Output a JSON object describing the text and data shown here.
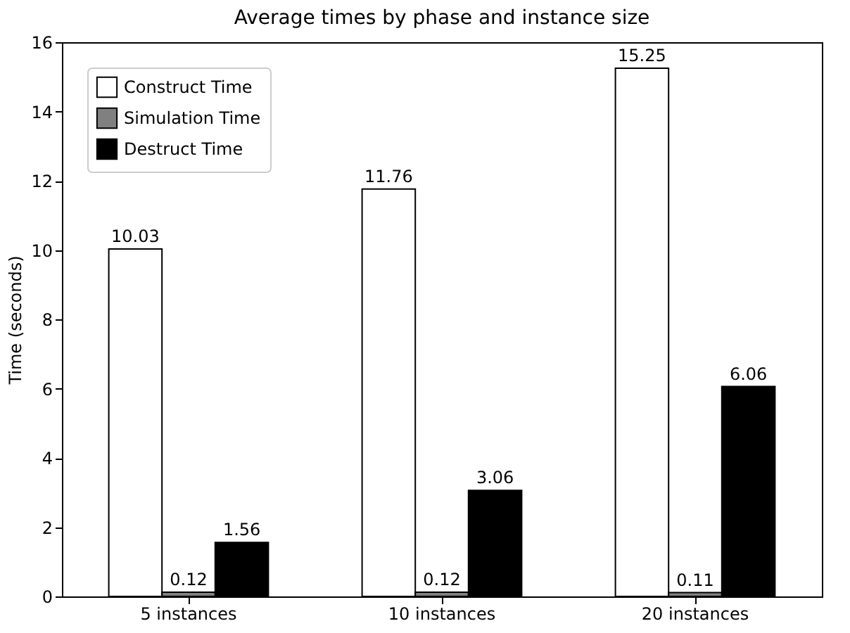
{
  "chart_data": {
    "type": "bar",
    "title": "Average times by phase and instance size",
    "ylabel": "Time (seconds)",
    "categories": [
      "5 instances",
      "10 instances",
      "20 instances"
    ],
    "series": [
      {
        "name": "Construct Time",
        "color": "#ffffff",
        "values": [
          10.03,
          11.76,
          15.25
        ]
      },
      {
        "name": "Simulation Time",
        "color": "#808080",
        "values": [
          0.12,
          0.12,
          0.11
        ]
      },
      {
        "name": "Destruct Time",
        "color": "#000000",
        "values": [
          1.56,
          3.06,
          6.06
        ]
      }
    ],
    "ylim": [
      0,
      16
    ],
    "yticks": [
      0,
      2,
      4,
      6,
      8,
      10,
      12,
      14,
      16
    ],
    "grid": false,
    "legend": "top left",
    "data_labels": true
  }
}
